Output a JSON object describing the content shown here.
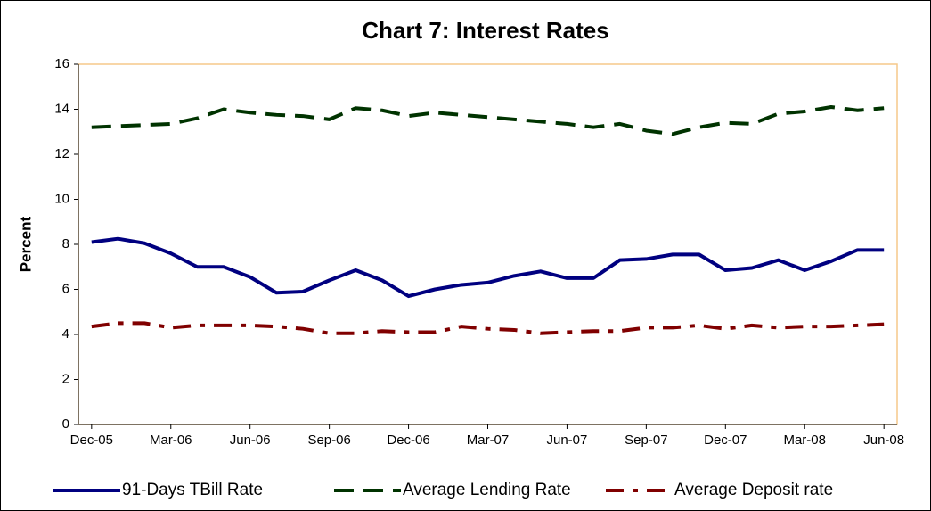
{
  "chart_data": {
    "type": "line",
    "title": "Chart 7: Interest Rates",
    "y_label": "Percent",
    "categories": [
      "Dec-05",
      null,
      null,
      "Mar-06",
      null,
      null,
      "Jun-06",
      null,
      null,
      "Sep-06",
      null,
      null,
      "Dec-06",
      null,
      null,
      "Mar-07",
      null,
      null,
      "Jun-07",
      null,
      null,
      "Sep-07",
      null,
      null,
      "Dec-07",
      null,
      null,
      "Mar-08",
      null,
      null,
      "Jun-08"
    ],
    "series": [
      {
        "name": "91-Days TBill Rate",
        "color": "#000080",
        "dash": "solid",
        "values": [
          8.1,
          8.25,
          8.05,
          7.6,
          7.0,
          7.0,
          6.55,
          5.85,
          5.9,
          6.4,
          6.85,
          6.4,
          5.7,
          6.0,
          6.2,
          6.3,
          6.6,
          6.8,
          6.5,
          6.5,
          7.3,
          7.35,
          7.55,
          7.55,
          6.85,
          6.95,
          7.3,
          6.85,
          7.25,
          7.75,
          7.75
        ]
      },
      {
        "name": "Average Lending Rate",
        "color": "#003300",
        "dash": "dashed",
        "values": [
          13.2,
          13.25,
          13.3,
          13.35,
          13.6,
          14.0,
          13.85,
          13.75,
          13.7,
          13.55,
          14.05,
          13.95,
          13.7,
          13.85,
          13.75,
          13.65,
          13.55,
          13.45,
          13.35,
          13.2,
          13.35,
          13.05,
          12.9,
          13.2,
          13.4,
          13.35,
          13.8,
          13.9,
          14.1,
          13.95,
          14.05
        ]
      },
      {
        "name": "Average Deposit rate",
        "color": "#800000",
        "dash": "dash-dot",
        "values": [
          4.35,
          4.5,
          4.5,
          4.3,
          4.4,
          4.4,
          4.4,
          4.35,
          4.25,
          4.05,
          4.05,
          4.15,
          4.1,
          4.1,
          4.35,
          4.25,
          4.2,
          4.05,
          4.1,
          4.15,
          4.15,
          4.3,
          4.3,
          4.4,
          4.25,
          4.4,
          4.3,
          4.35,
          4.35,
          4.4,
          4.45
        ]
      }
    ],
    "ylim": [
      0,
      16
    ],
    "yticks": [
      0,
      2,
      4,
      6,
      8,
      10,
      12,
      14,
      16
    ],
    "grid": false,
    "legend": "bottom"
  }
}
